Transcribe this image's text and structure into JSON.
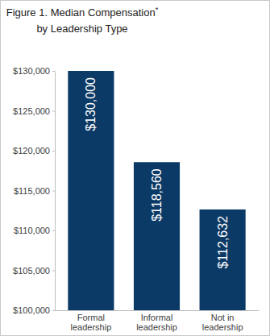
{
  "chart_data": {
    "type": "bar",
    "title": "Figure 1. Median Compensation* by Leadership Type",
    "categories": [
      "Formal leadership",
      "Informal leadership",
      "Not in leadership"
    ],
    "values": [
      130000,
      118560,
      112632
    ],
    "value_labels": [
      "$130,000",
      "$118,560",
      "$112,632"
    ],
    "color": "#0b3a66",
    "ylim": [
      100000,
      130000
    ],
    "yticks": [
      {
        "value": 100000,
        "label": "$100,000"
      },
      {
        "value": 105000,
        "label": "$105,000"
      },
      {
        "value": 110000,
        "label": "$110,000"
      },
      {
        "value": 115000,
        "label": "$115,000"
      },
      {
        "value": 120000,
        "label": "$120,000"
      },
      {
        "value": 125000,
        "label": "$125,000"
      },
      {
        "value": 130000,
        "label": "$130,000"
      }
    ],
    "grid": false,
    "data_labels": true
  }
}
